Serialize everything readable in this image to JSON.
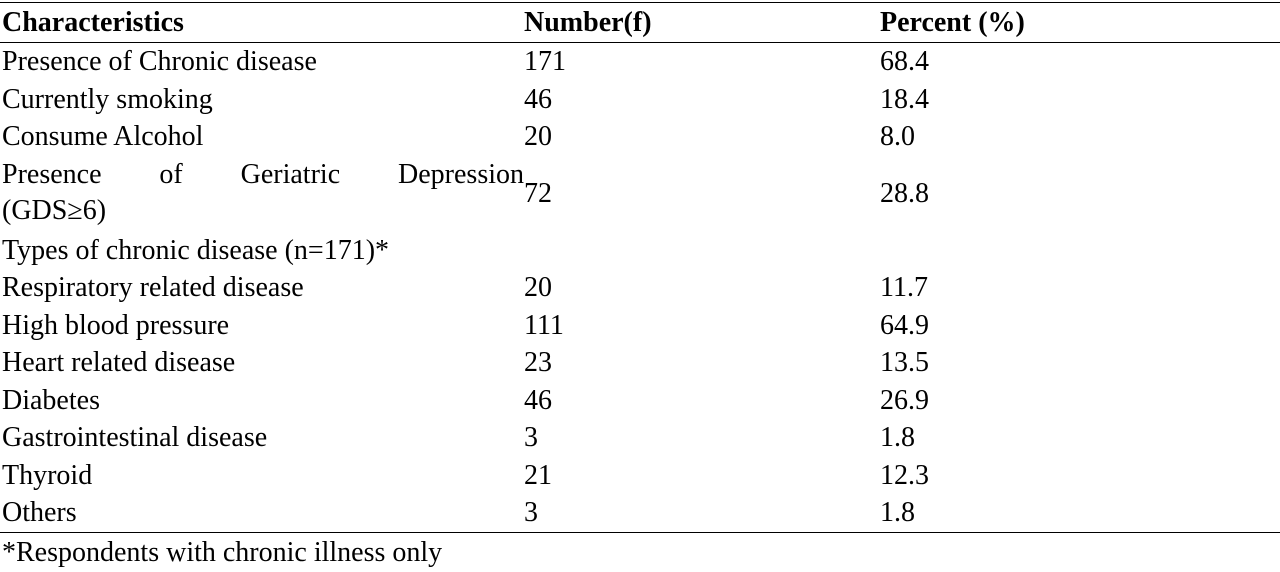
{
  "table": {
    "headers": [
      "Characteristics",
      "Number(f)",
      "Percent (%)"
    ],
    "rows": [
      {
        "label": "Presence of Chronic disease",
        "number": "171",
        "percent": "68.4"
      },
      {
        "label": "Currently smoking",
        "number": "46",
        "percent": "18.4"
      },
      {
        "label": "Consume Alcohol",
        "number": "20",
        "percent": "8.0"
      },
      {
        "label_line1_words": [
          "Presence",
          "of",
          "Geriatric",
          "Depression"
        ],
        "label_line2": "(GDS≥6)",
        "number": "72",
        "percent": "28.8"
      },
      {
        "label": "Types of chronic disease (n=171)*"
      },
      {
        "label": "Respiratory related disease",
        "number": "20",
        "percent": "11.7"
      },
      {
        "label": "High blood pressure",
        "number": "111",
        "percent": "64.9"
      },
      {
        "label": "Heart related disease",
        "number": "23",
        "percent": "13.5"
      },
      {
        "label": "Diabetes",
        "number": "46",
        "percent": "26.9"
      },
      {
        "label": "Gastrointestinal disease",
        "number": "3",
        "percent": "1.8"
      },
      {
        "label": "Thyroid",
        "number": "21",
        "percent": "12.3"
      },
      {
        "label": "Others",
        "number": "3",
        "percent": "1.8"
      }
    ],
    "footnote": "*Respondents with chronic illness only"
  }
}
